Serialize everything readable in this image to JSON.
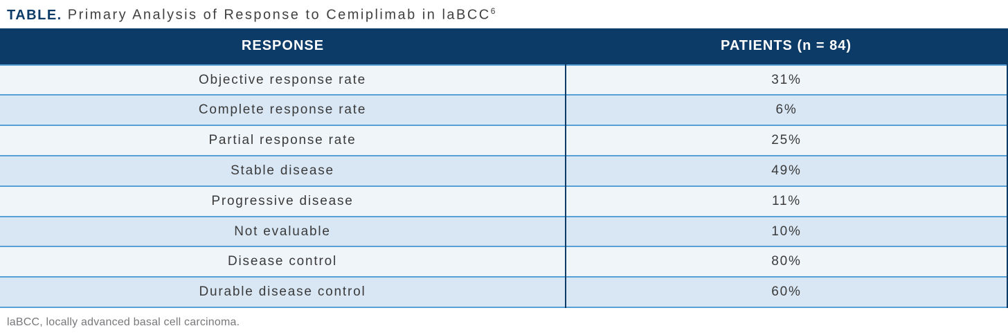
{
  "title": {
    "label": "TABLE.",
    "text": "Primary Analysis of Response to Cemiplimab in laBCC",
    "superscript": "6"
  },
  "table": {
    "columns": [
      "RESPONSE",
      "PATIENTS (n = 84)"
    ],
    "rows": [
      {
        "response": "Objective response rate",
        "patients": "31%"
      },
      {
        "response": "Complete response rate",
        "patients": "6%"
      },
      {
        "response": "Partial response rate",
        "patients": "25%"
      },
      {
        "response": "Stable disease",
        "patients": "49%"
      },
      {
        "response": "Progressive disease",
        "patients": "11%"
      },
      {
        "response": "Not evaluable",
        "patients": "10%"
      },
      {
        "response": "Disease control",
        "patients": "80%"
      },
      {
        "response": "Durable disease control",
        "patients": "60%"
      }
    ]
  },
  "footnote": "laBCC, locally advanced basal cell carcinoma.",
  "colors": {
    "header_navy": "#0d3b68",
    "row_light": "#f0f5fa",
    "row_shaded": "#d9e7f5",
    "rule_blue": "#56a0d6",
    "title_navy": "#0d3b68",
    "title_gray": "#414042",
    "cell_text": "#3a3a3a",
    "footnote_gray": "#77787b"
  },
  "chart_data": {
    "type": "table",
    "title": "TABLE. Primary Analysis of Response to Cemiplimab in laBCC",
    "reference_superscript": "6",
    "columns": [
      "RESPONSE",
      "PATIENTS (n = 84)"
    ],
    "n_patients": 84,
    "categories": [
      "Objective response rate",
      "Complete response rate",
      "Partial response rate",
      "Stable disease",
      "Progressive disease",
      "Not evaluable",
      "Disease control",
      "Durable disease control"
    ],
    "values_percent": [
      31,
      6,
      25,
      49,
      11,
      10,
      80,
      60
    ],
    "footnote": "laBCC, locally advanced basal cell carcinoma.",
    "layout": "two-column table, alternating row shading, centered text"
  }
}
